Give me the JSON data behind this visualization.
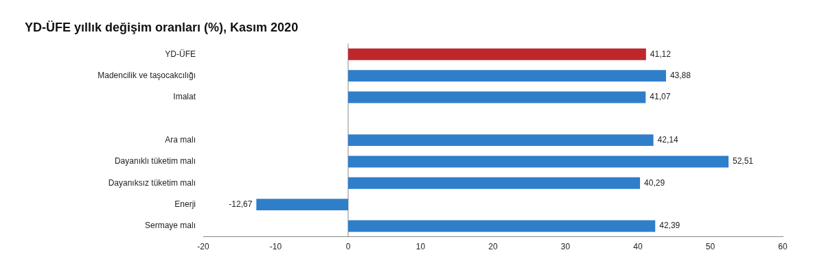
{
  "chart_data": {
    "type": "bar",
    "orientation": "horizontal",
    "title": "YD-ÜFE yıllık değişim oranları (%), Kasım 2020",
    "categories": [
      "YD-ÜFE",
      "Madencilik ve taşocakcılığı",
      "Imalat",
      null,
      "Ara malı",
      "Dayanıklı tüketim malı",
      "Dayanıksız tüketim malı",
      "Enerji",
      "Sermaye malı"
    ],
    "values": [
      41.12,
      43.88,
      41.07,
      null,
      42.14,
      52.51,
      40.29,
      -12.67,
      42.39
    ],
    "value_labels": [
      "41,12",
      "43,88",
      "41,07",
      null,
      "42,14",
      "52,51",
      "40,29",
      "-12,67",
      "42,39"
    ],
    "colors": [
      "#c0272d",
      "#2f7ec9",
      "#2f7ec9",
      "#2f7ec9",
      "#2f7ec9",
      "#2f7ec9",
      "#2f7ec9",
      "#2f7ec9",
      "#2f7ec9"
    ],
    "xlim": [
      -20,
      60
    ],
    "xticks": [
      -20,
      -10,
      0,
      10,
      20,
      30,
      40,
      50,
      60
    ],
    "ref_lines": [
      {
        "axis": "x",
        "value": 0,
        "color": "#888888"
      }
    ],
    "grid": false,
    "legend": false
  }
}
